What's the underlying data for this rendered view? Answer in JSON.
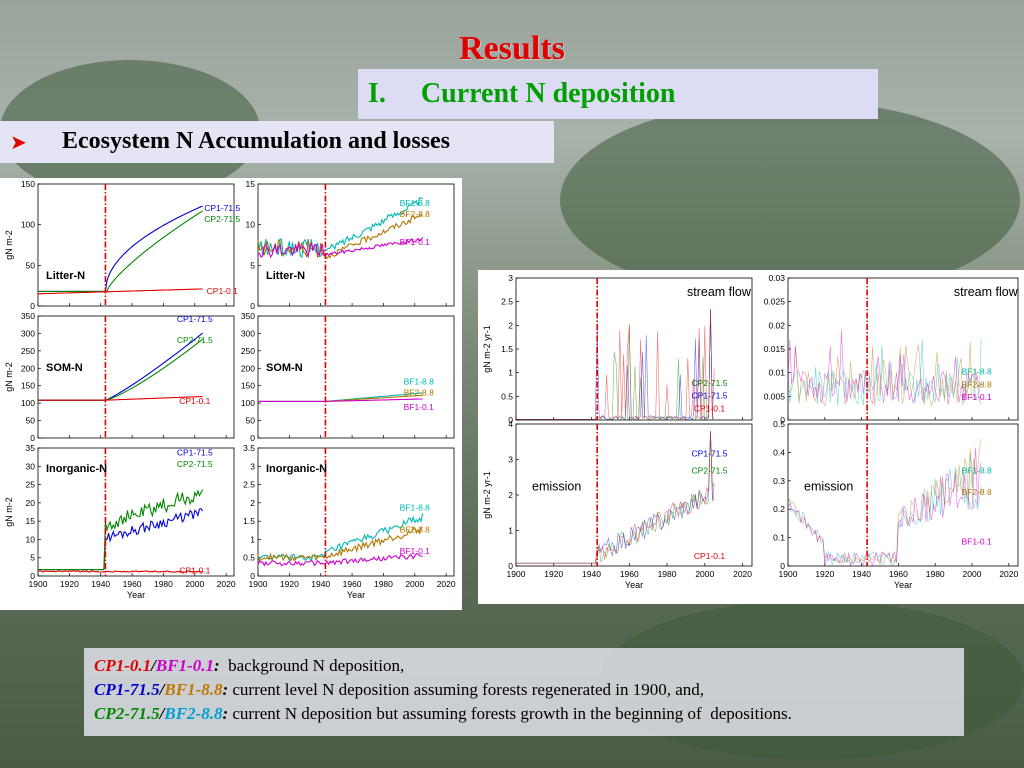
{
  "title": "Results",
  "subtitle": "I.  Current N deposition",
  "bullet": "Ecosystem N Accumulation and losses",
  "colors": {
    "cp1": "#e00000",
    "cp2": "#008800",
    "cp3": "#0000dd",
    "bf1": "#cc00cc",
    "bf2": "#b07800",
    "bf3": "#00b8b8"
  },
  "legend": [
    {
      "a": "CP1-0.1",
      "b": "BF1-0.1",
      "sep": "/",
      "suffix": ":",
      "text": "  background N deposition,"
    },
    {
      "a": "CP1-71.5",
      "b": "BF1-8.8",
      "sep": "/",
      "suffix": ":",
      "text": " current level N deposition assuming forests regenerated in 1900, and,"
    },
    {
      "a": "CP2-71.5",
      "b": "BF2-8.8",
      "sep": "/",
      "suffix": ":",
      "text": " current N deposition but assuming forests growth in the beginning of  depositions."
    }
  ],
  "chart_data": [
    {
      "type": "line",
      "label": "Litter-N",
      "ylabel": "gN m-2",
      "xlim": [
        1900,
        2025
      ],
      "ylim": [
        0,
        150
      ],
      "yticks": [
        0,
        50,
        100,
        150
      ],
      "vline": 1943,
      "series": [
        {
          "name": "CP1-71.5",
          "color": "cp3"
        },
        {
          "name": "CP2-71.5",
          "color": "cp2"
        },
        {
          "name": "CP1-0.1",
          "color": "cp1"
        }
      ]
    },
    {
      "type": "line",
      "label": "Litter-N",
      "xlim": [
        1900,
        2025
      ],
      "ylim": [
        0,
        15
      ],
      "yticks": [
        0,
        5,
        10,
        15
      ],
      "vline": 1943,
      "series": [
        {
          "name": "BF1-8.8",
          "color": "bf3"
        },
        {
          "name": "BF2-8.8",
          "color": "bf2"
        },
        {
          "name": "BF1-0.1",
          "color": "bf1"
        }
      ]
    },
    {
      "type": "line",
      "label": "SOM-N",
      "ylabel": "gN m-2",
      "xlim": [
        1900,
        2025
      ],
      "ylim": [
        0,
        350
      ],
      "yticks": [
        0,
        50,
        100,
        150,
        200,
        250,
        300,
        350
      ],
      "vline": 1943,
      "series": [
        {
          "name": "CP1-71.5",
          "color": "cp3"
        },
        {
          "name": "CP2-71.5",
          "color": "cp2"
        },
        {
          "name": "CP1-0.1",
          "color": "cp1"
        }
      ]
    },
    {
      "type": "line",
      "label": "SOM-N",
      "xlim": [
        1900,
        2025
      ],
      "ylim": [
        0,
        350
      ],
      "yticks": [
        0,
        50,
        100,
        150,
        200,
        250,
        300,
        350
      ],
      "vline": 1943,
      "series": [
        {
          "name": "BF1-8.8",
          "color": "bf3"
        },
        {
          "name": "BF2-8.8",
          "color": "bf2"
        },
        {
          "name": "BF1-0.1",
          "color": "bf1"
        }
      ]
    },
    {
      "type": "line",
      "label": "Inorganic-N",
      "ylabel": "gN m-2",
      "xlabel": "Year",
      "xlim": [
        1900,
        2025
      ],
      "ylim": [
        0,
        35
      ],
      "yticks": [
        0,
        5,
        10,
        15,
        20,
        25,
        30,
        35
      ],
      "xticks": [
        1900,
        1920,
        1940,
        1960,
        1980,
        2000,
        2020
      ],
      "vline": 1943,
      "series": [
        {
          "name": "CP1-71.5",
          "color": "cp3"
        },
        {
          "name": "CP2-71.5",
          "color": "cp2"
        },
        {
          "name": "CP1-0.1",
          "color": "cp1"
        }
      ]
    },
    {
      "type": "line",
      "label": "Inorganic-N",
      "xlabel": "Year",
      "xlim": [
        1900,
        2025
      ],
      "ylim": [
        0,
        3.5
      ],
      "yticks": [
        0,
        0.5,
        1,
        1.5,
        2,
        2.5,
        3,
        3.5
      ],
      "xticks": [
        1900,
        1920,
        1940,
        1960,
        1980,
        2000,
        2020
      ],
      "vline": 1943,
      "series": [
        {
          "name": "BF1-8.8",
          "color": "bf3"
        },
        {
          "name": "BF2-8.8",
          "color": "bf2"
        },
        {
          "name": "BF1-0.1",
          "color": "bf1"
        }
      ]
    },
    {
      "type": "line",
      "label": "stream flow",
      "ylabel": "gN m-2 yr-1",
      "xlim": [
        1900,
        2025
      ],
      "ylim": [
        0,
        3
      ],
      "yticks": [
        0,
        0.5,
        1,
        1.5,
        2,
        2.5,
        3
      ],
      "vline": 1943,
      "series": [
        {
          "name": "CP2-71.5",
          "color": "cp2"
        },
        {
          "name": "CP1-71.5",
          "color": "cp3"
        },
        {
          "name": "CP1-0.1",
          "color": "cp1"
        }
      ]
    },
    {
      "type": "line",
      "label": "stream flow",
      "xlim": [
        1900,
        2025
      ],
      "ylim": [
        0,
        0.03
      ],
      "yticks": [
        0,
        0.005,
        0.01,
        0.015,
        0.02,
        0.025,
        0.03
      ],
      "vline": 1943,
      "series": [
        {
          "name": "BF1-8.8",
          "color": "bf3"
        },
        {
          "name": "BF2-8.8",
          "color": "bf2"
        },
        {
          "name": "BF1-0.1",
          "color": "bf1"
        }
      ]
    },
    {
      "type": "line",
      "label": "emission",
      "ylabel": "gN m-2 yr-1",
      "xlabel": "Year",
      "xlim": [
        1900,
        2025
      ],
      "ylim": [
        0,
        4
      ],
      "yticks": [
        0,
        1,
        2,
        3,
        4
      ],
      "xticks": [
        1900,
        1920,
        1940,
        1960,
        1980,
        2000,
        2020
      ],
      "vline": 1943,
      "series": [
        {
          "name": "CP1-71.5",
          "color": "cp3"
        },
        {
          "name": "CP2-71.5",
          "color": "cp2"
        },
        {
          "name": "CP1-0.1",
          "color": "cp1"
        }
      ]
    },
    {
      "type": "line",
      "label": "emission",
      "xlabel": "Year",
      "xlim": [
        1900,
        2025
      ],
      "ylim": [
        0,
        0.5
      ],
      "yticks": [
        0,
        0.1,
        0.2,
        0.3,
        0.4,
        0.5
      ],
      "xticks": [
        1900,
        1920,
        1940,
        1960,
        1980,
        2000,
        2020
      ],
      "vline": 1943,
      "series": [
        {
          "name": "BF1-8.8",
          "color": "bf3"
        },
        {
          "name": "BF2-8.8",
          "color": "bf2"
        },
        {
          "name": "BF1-0.1",
          "color": "bf1"
        }
      ]
    }
  ]
}
